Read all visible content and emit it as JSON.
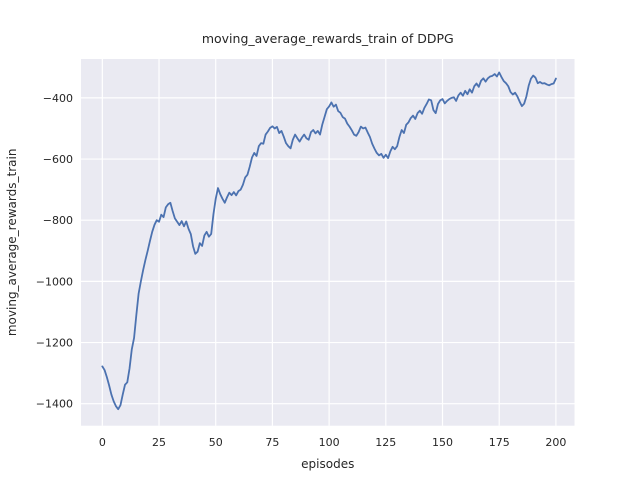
{
  "chart_data": {
    "type": "line",
    "title": "moving_average_rewards_train of DDPG",
    "xlabel": "episodes",
    "ylabel": "moving_average_rewards_train",
    "legend": null,
    "grid": true,
    "x_start": 0,
    "x_step": 1,
    "xticks": [
      0,
      25,
      50,
      75,
      100,
      125,
      150,
      175,
      200
    ],
    "yticks": [
      -400,
      -600,
      -800,
      -1000,
      -1200,
      -1400
    ],
    "xlim": [
      -9.4,
      208.2
    ],
    "ylim": [
      -1471.9,
      -272.9
    ],
    "series": [
      {
        "name": "moving_average_rewards_train",
        "values": [
          -1278,
          -1290,
          -1313,
          -1340,
          -1370,
          -1392,
          -1408,
          -1418,
          -1405,
          -1370,
          -1338,
          -1330,
          -1285,
          -1222,
          -1185,
          -1110,
          -1040,
          -1000,
          -963,
          -930,
          -900,
          -868,
          -838,
          -815,
          -800,
          -805,
          -782,
          -790,
          -758,
          -748,
          -743,
          -770,
          -794,
          -805,
          -816,
          -803,
          -820,
          -804,
          -828,
          -845,
          -885,
          -910,
          -903,
          -875,
          -884,
          -850,
          -838,
          -854,
          -845,
          -780,
          -730,
          -695,
          -715,
          -730,
          -743,
          -725,
          -710,
          -718,
          -708,
          -719,
          -705,
          -700,
          -684,
          -660,
          -651,
          -625,
          -595,
          -580,
          -590,
          -558,
          -548,
          -550,
          -520,
          -510,
          -498,
          -493,
          -500,
          -495,
          -515,
          -508,
          -527,
          -548,
          -558,
          -565,
          -537,
          -520,
          -532,
          -543,
          -530,
          -520,
          -532,
          -537,
          -512,
          -505,
          -516,
          -508,
          -520,
          -487,
          -462,
          -437,
          -428,
          -415,
          -429,
          -422,
          -443,
          -449,
          -463,
          -468,
          -484,
          -494,
          -506,
          -520,
          -524,
          -512,
          -494,
          -500,
          -497,
          -513,
          -528,
          -550,
          -566,
          -580,
          -588,
          -583,
          -596,
          -586,
          -597,
          -575,
          -560,
          -568,
          -558,
          -528,
          -505,
          -515,
          -488,
          -480,
          -466,
          -458,
          -469,
          -450,
          -442,
          -452,
          -433,
          -420,
          -405,
          -408,
          -440,
          -450,
          -420,
          -408,
          -404,
          -418,
          -410,
          -404,
          -400,
          -398,
          -410,
          -392,
          -383,
          -393,
          -377,
          -388,
          -372,
          -383,
          -362,
          -353,
          -364,
          -344,
          -336,
          -347,
          -336,
          -330,
          -328,
          -322,
          -330,
          -317,
          -332,
          -345,
          -352,
          -362,
          -381,
          -389,
          -383,
          -395,
          -412,
          -427,
          -419,
          -395,
          -360,
          -337,
          -327,
          -334,
          -352,
          -348,
          -353,
          -352,
          -356,
          -359,
          -355,
          -353,
          -337
        ]
      }
    ],
    "colors": {
      "line": "#4c72b0",
      "plot_background": "#eaeaf2",
      "gridline": "#ffffff",
      "text": "#262626",
      "figure_background": "#ffffff"
    }
  }
}
